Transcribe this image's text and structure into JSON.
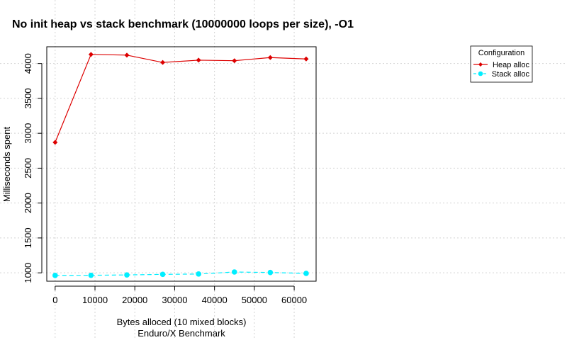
{
  "chart_data": {
    "type": "line",
    "title": "No init heap vs stack benchmark (10000000 loops per size), -O1",
    "xlabel": "Bytes alloced (10 mixed blocks)",
    "subtitle": "Enduro/X Benchmark",
    "ylabel": "Milliseconds spent",
    "xlim": [
      -2100,
      65500
    ],
    "ylim": [
      880,
      4240
    ],
    "xticks": [
      0,
      10000,
      20000,
      30000,
      40000,
      50000,
      60000
    ],
    "yticks": [
      1000,
      1500,
      2000,
      2500,
      3000,
      3500,
      4000
    ],
    "grid": true,
    "legend_title": "Configuration",
    "legend_position": "top-right",
    "x": [
      0,
      9000,
      18000,
      27000,
      36000,
      45000,
      54000,
      63000
    ],
    "series": [
      {
        "name": "Heap alloc",
        "color": "#dd0000",
        "line_style": "solid",
        "marker": "diamond",
        "values": [
          2870,
          4130,
          4120,
          4015,
          4048,
          4040,
          4085,
          4065
        ]
      },
      {
        "name": "Stack alloc",
        "color": "#00eeff",
        "line_style": "dashed",
        "marker": "circle",
        "values": [
          963,
          965,
          970,
          978,
          983,
          1012,
          1005,
          992
        ]
      }
    ]
  }
}
